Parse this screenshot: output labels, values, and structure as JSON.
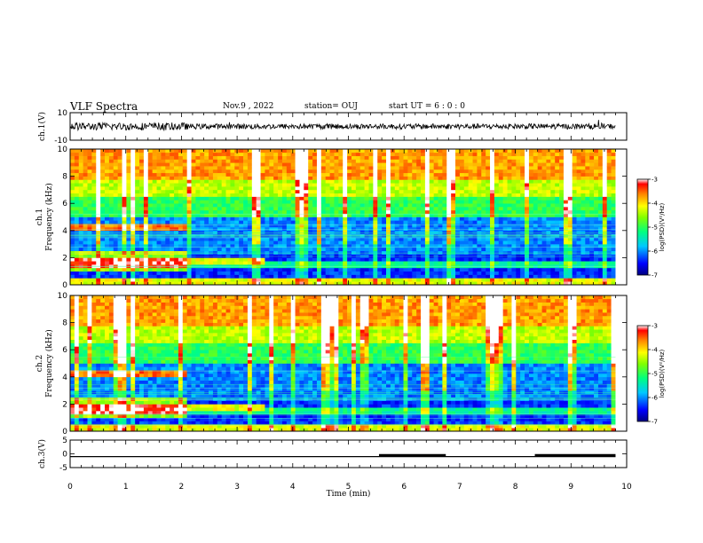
{
  "header": {
    "title": "VLF Spectra",
    "date": "Nov.9 , 2022",
    "station": "station= OUJ",
    "start": "start UT = 6 : 0 : 0"
  },
  "chart_data": [
    {
      "type": "line",
      "panel": "ch1-waveform",
      "ylabel": "ch.1(V)",
      "ylim": [
        -10,
        10
      ],
      "yticks": [
        10,
        -10
      ],
      "xlim": [
        0,
        10
      ],
      "amplitude_note_values": [
        -2,
        2
      ]
    },
    {
      "type": "heatmap",
      "panel": "ch1-spectrogram",
      "ylabel": "ch.1\nFrequency (kHz)",
      "ylabel_line1": "ch.1",
      "ylabel_line2": "Frequency (kHz)",
      "ylim": [
        0,
        10
      ],
      "yticks": [
        0,
        2,
        4,
        6,
        8,
        10
      ],
      "xlim": [
        0,
        10
      ],
      "data_end_min": 9.8,
      "change_time_min": 2.1,
      "colorbar": {
        "label": "log(PSD)(V²/Hz)",
        "ticks": [
          -3,
          -4,
          -5,
          -6,
          -7
        ],
        "range": [
          -7,
          -3
        ]
      }
    },
    {
      "type": "heatmap",
      "panel": "ch2-spectrogram",
      "ylabel_line1": "ch.2",
      "ylabel_line2": "Frequency (kHz)",
      "ylim": [
        0,
        10
      ],
      "yticks": [
        0,
        2,
        4,
        6,
        8,
        10
      ],
      "xlim": [
        0,
        10
      ],
      "data_end_min": 9.8,
      "change_time_min": 2.1,
      "colorbar": {
        "label": "log(PSD)(V²/Hz)",
        "ticks": [
          -3,
          -4,
          -5,
          -6,
          -7
        ],
        "range": [
          -7,
          -3
        ]
      }
    },
    {
      "type": "line",
      "panel": "ch3-signal",
      "ylabel": "ch.3(V)",
      "ylim": [
        -5,
        5
      ],
      "yticks": [
        5,
        0,
        -5
      ],
      "xlim": [
        0,
        10
      ],
      "xlabel": "Time (min)",
      "xticks": [
        0,
        1,
        2,
        3,
        4,
        5,
        6,
        7,
        8,
        9,
        10
      ],
      "baseline_value": -1,
      "thick_segments": [
        [
          5.55,
          6.75
        ],
        [
          8.35,
          9.8
        ]
      ]
    }
  ]
}
